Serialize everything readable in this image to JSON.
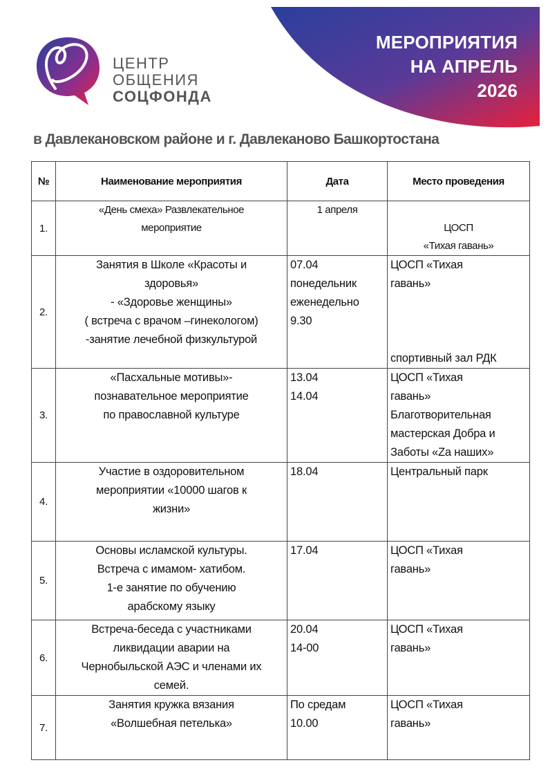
{
  "banner": {
    "title_lines": [
      "МЕРОПРИЯТИЯ",
      "НА АПРЕЛЬ",
      "2026"
    ],
    "gradient_colors": [
      "#2b3f9c",
      "#7a3592",
      "#e8203c"
    ]
  },
  "logo": {
    "line1": "ЦЕНТР",
    "line2": "ОБЩЕНИЯ",
    "line3": "СОЦФОНДА",
    "icon": "heart-speech-bubble-icon"
  },
  "subtitle": "в Давлекановском районе и г. Давлеканово Башкортостана",
  "table": {
    "headers": [
      "№",
      "Наименование мероприятия",
      "Дата",
      "Место проведения"
    ],
    "rows": [
      {
        "num": "1.",
        "name": [
          "«День смеха» Развлекательное",
          "мероприятие"
        ],
        "date": [
          "1 апреля"
        ],
        "place": [
          "",
          "ЦОСП",
          "«Тихая гавань»"
        ],
        "place_extra": ""
      },
      {
        "num": "2.",
        "name": [
          "Занятия в Школе «Красоты и",
          "здоровья»",
          "- «Здоровье женщины»",
          "( встреча с врачом –гинекологом)",
          "-занятие лечебной физкультурой"
        ],
        "date": [
          "07.04",
          "понедельник",
          "еженедельно",
          "9.30"
        ],
        "place": [
          "ЦОСП «Тихая",
          "гавань»"
        ],
        "place_extra": "спортивный зал РДК"
      },
      {
        "num": "3.",
        "name": [
          "«Пасхальные мотивы»-",
          "познавательное мероприятие",
          "по православной культуре"
        ],
        "date": [
          "13.04",
          "14.04"
        ],
        "place": [
          "ЦОСП «Тихая",
          "гавань»",
          "Благотворительная",
          "мастерская Добра и",
          "Заботы «Zа наших»"
        ],
        "place_extra": ""
      },
      {
        "num": "4.",
        "name": [
          "Участие в оздоровительном",
          "мероприятии «10000 шагов к",
          "жизни»"
        ],
        "date": [
          "18.04"
        ],
        "place": [
          "Центральный парк"
        ],
        "place_extra": ""
      },
      {
        "num": "5.",
        "name": [
          "Основы исламской культуры.",
          "Встреча с имамом- хатибом.",
          "1-е занятие по обучению",
          "арабскому языку"
        ],
        "date": [
          "17.04"
        ],
        "place": [
          "ЦОСП «Тихая",
          "гавань»"
        ],
        "place_extra": ""
      },
      {
        "num": "6.",
        "name": [
          "Встреча-беседа с участниками",
          "ликвидации аварии на",
          "Чернобыльской АЭС и членами их",
          "семей."
        ],
        "date": [
          "20.04",
          "14-00"
        ],
        "place": [
          "ЦОСП «Тихая",
          "гавань»"
        ],
        "place_extra": ""
      },
      {
        "num": "7.",
        "name": [
          "Занятия кружка вязания",
          "«Волшебная петелька»"
        ],
        "date": [
          "По средам",
          "10.00"
        ],
        "place": [
          " ЦОСП «Тихая",
          "гавань»"
        ],
        "place_extra": ""
      }
    ]
  }
}
